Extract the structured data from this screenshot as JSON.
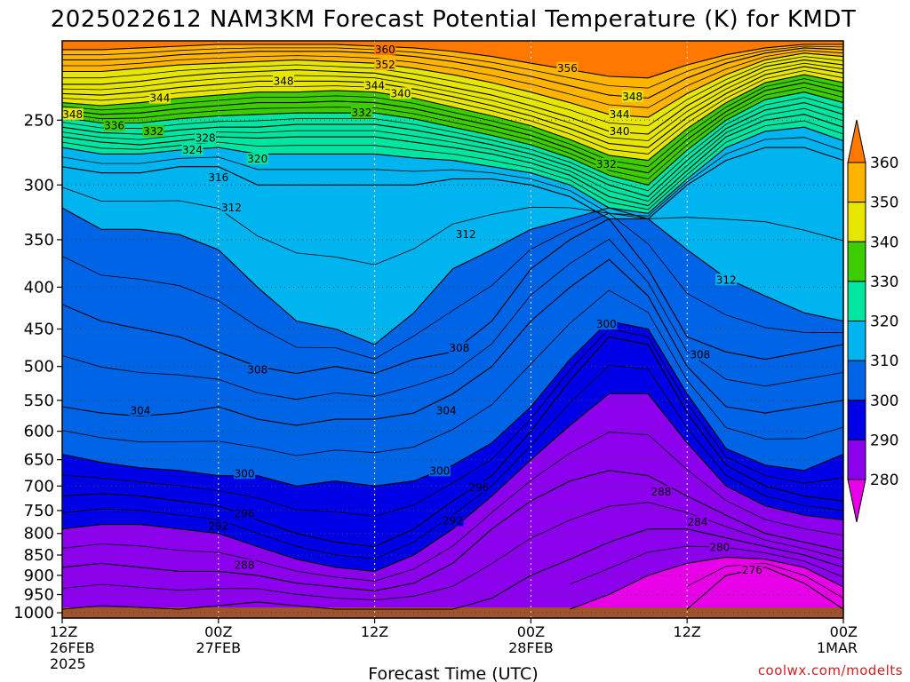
{
  "chart_data": {
    "type": "heatmap",
    "title": "2025022612 NAM3KM Forecast Potential Temperature (K) for KMDT",
    "xlabel": "Forecast Time (UTC)",
    "ylabel": "",
    "credit": "coolwx.com/modelts",
    "y_scale": "log",
    "y_reversed": true,
    "ylim": [
      1015,
      200
    ],
    "xlim": [
      0,
      60
    ],
    "y_ticks": [
      250,
      300,
      350,
      400,
      450,
      500,
      550,
      600,
      650,
      700,
      750,
      800,
      850,
      900,
      950,
      1000
    ],
    "x_ticks": [
      {
        "x": 0,
        "lines": [
          "12Z",
          "26FEB",
          "2025"
        ]
      },
      {
        "x": 12,
        "lines": [
          "00Z",
          "27FEB"
        ]
      },
      {
        "x": 24,
        "lines": [
          "12Z"
        ]
      },
      {
        "x": 36,
        "lines": [
          "00Z",
          "28FEB"
        ]
      },
      {
        "x": 48,
        "lines": [
          "12Z"
        ]
      },
      {
        "x": 60,
        "lines": [
          "00Z",
          "1MAR"
        ]
      }
    ],
    "grid": true,
    "surface_pressure": 985,
    "colorbar": {
      "ticks": [
        280,
        290,
        300,
        310,
        320,
        330,
        340,
        350,
        360
      ],
      "bands": [
        {
          "min": 270,
          "max": 280,
          "color": "#e800e8"
        },
        {
          "min": 280,
          "max": 290,
          "color": "#8c00ee"
        },
        {
          "min": 290,
          "max": 300,
          "color": "#0000e6"
        },
        {
          "min": 300,
          "max": 310,
          "color": "#0064e6"
        },
        {
          "min": 310,
          "max": 320,
          "color": "#00b4f0"
        },
        {
          "min": 320,
          "max": 330,
          "color": "#00e6a0"
        },
        {
          "min": 330,
          "max": 340,
          "color": "#3ccc00"
        },
        {
          "min": 340,
          "max": 350,
          "color": "#e6e600"
        },
        {
          "min": 350,
          "max": 360,
          "color": "#ffb400"
        },
        {
          "min": 360,
          "max": 370,
          "color": "#ff7800"
        }
      ]
    },
    "x": [
      0,
      3,
      6,
      9,
      12,
      15,
      18,
      21,
      24,
      27,
      30,
      33,
      36,
      39,
      42,
      45,
      48,
      51,
      54,
      57,
      60
    ],
    "isentropes": [
      {
        "theta": 276,
        "p": [
          null,
          null,
          null,
          null,
          null,
          null,
          null,
          null,
          null,
          null,
          null,
          null,
          null,
          null,
          null,
          null,
          990,
          900,
          880,
          920,
          990
        ]
      },
      {
        "theta": 280,
        "p": [
          null,
          null,
          null,
          null,
          null,
          null,
          null,
          null,
          null,
          null,
          null,
          null,
          null,
          990,
          950,
          900,
          870,
          855,
          860,
          880,
          930
        ]
      },
      {
        "theta": 284,
        "p": [
          990,
          980,
          985,
          990,
          980,
          970,
          980,
          990,
          990,
          990,
          990,
          960,
          900,
          860,
          820,
          790,
          790,
          810,
          830,
          850,
          880
        ]
      },
      {
        "theta": 288,
        "p": [
          880,
          870,
          880,
          890,
          890,
          900,
          920,
          930,
          940,
          920,
          870,
          790,
          730,
          690,
          670,
          680,
          720,
          760,
          800,
          820,
          840
        ]
      },
      {
        "theta": 292,
        "p": [
          790,
          780,
          780,
          790,
          800,
          830,
          860,
          880,
          890,
          850,
          790,
          720,
          650,
          590,
          540,
          540,
          620,
          700,
          740,
          760,
          770
        ]
      },
      {
        "theta": 296,
        "p": [
          720,
          715,
          720,
          730,
          740,
          770,
          800,
          820,
          830,
          790,
          730,
          680,
          600,
          520,
          460,
          470,
          570,
          660,
          700,
          720,
          730
        ]
      },
      {
        "theta": 300,
        "p": [
          640,
          655,
          665,
          670,
          680,
          680,
          700,
          690,
          700,
          690,
          660,
          620,
          560,
          490,
          440,
          450,
          540,
          630,
          660,
          670,
          640
        ]
      },
      {
        "theta": 304,
        "p": [
          560,
          570,
          575,
          570,
          560,
          580,
          590,
          580,
          580,
          570,
          540,
          500,
          440,
          400,
          370,
          410,
          500,
          560,
          570,
          560,
          550
        ]
      },
      {
        "theta": 308,
        "p": [
          420,
          440,
          450,
          460,
          480,
          500,
          510,
          500,
          510,
          490,
          480,
          440,
          380,
          350,
          330,
          380,
          460,
          480,
          490,
          480,
          470
        ]
      },
      {
        "theta": 312,
        "p": [
          320,
          340,
          340,
          345,
          360,
          400,
          440,
          450,
          470,
          430,
          380,
          360,
          340,
          330,
          320,
          330,
          360,
          390,
          410,
          430,
          440
        ]
      },
      {
        "theta": 316,
        "p": [
          285,
          290,
          290,
          285,
          285,
          300,
          300,
          300,
          300,
          300,
          295,
          295,
          300,
          310,
          330,
          330,
          300,
          280,
          270,
          270,
          280
        ]
      },
      {
        "theta": 320,
        "p": [
          270,
          275,
          275,
          272,
          270,
          275,
          275,
          275,
          275,
          278,
          280,
          285,
          290,
          300,
          320,
          325,
          295,
          270,
          258,
          255,
          265
        ]
      },
      {
        "theta": 324,
        "p": [
          262,
          266,
          268,
          265,
          262,
          263,
          262,
          262,
          262,
          266,
          270,
          275,
          282,
          292,
          310,
          318,
          288,
          262,
          250,
          246,
          255
        ]
      },
      {
        "theta": 328,
        "p": [
          255,
          259,
          260,
          257,
          255,
          255,
          253,
          253,
          253,
          257,
          262,
          268,
          275,
          285,
          300,
          310,
          280,
          256,
          243,
          238,
          246
        ]
      },
      {
        "theta": 332,
        "p": [
          248,
          252,
          252,
          249,
          247,
          246,
          245,
          245,
          245,
          249,
          255,
          261,
          268,
          278,
          292,
          300,
          272,
          250,
          236,
          231,
          238
        ]
      },
      {
        "theta": 336,
        "p": [
          243,
          246,
          245,
          242,
          240,
          238,
          238,
          237,
          238,
          242,
          248,
          254,
          261,
          271,
          284,
          290,
          264,
          244,
          230,
          225,
          231
        ]
      },
      {
        "theta": 340,
        "p": [
          238,
          240,
          238,
          235,
          233,
          231,
          231,
          230,
          231,
          235,
          241,
          247,
          254,
          264,
          276,
          280,
          256,
          238,
          225,
          220,
          225
        ]
      },
      {
        "theta": 344,
        "p": [
          232,
          233,
          231,
          228,
          226,
          224,
          224,
          224,
          225,
          229,
          234,
          240,
          247,
          256,
          267,
          270,
          248,
          232,
          220,
          215,
          219
        ]
      },
      {
        "theta": 348,
        "p": [
          226,
          226,
          224,
          221,
          219,
          218,
          217,
          218,
          219,
          223,
          228,
          233,
          240,
          248,
          258,
          260,
          240,
          226,
          215,
          211,
          214
        ]
      },
      {
        "theta": 352,
        "p": [
          218,
          218,
          216,
          214,
          213,
          212,
          211,
          212,
          213,
          216,
          220,
          225,
          231,
          238,
          246,
          248,
          232,
          220,
          211,
          207,
          209
        ]
      },
      {
        "theta": 356,
        "p": [
          211,
          211,
          210,
          208,
          207,
          206,
          206,
          206,
          207,
          209,
          212,
          216,
          221,
          227,
          233,
          235,
          222,
          213,
          207,
          204,
          205
        ]
      },
      {
        "theta": 360,
        "p": [
          205,
          205,
          204,
          203,
          202,
          202,
          202,
          202,
          203,
          204,
          206,
          209,
          213,
          217,
          221,
          222,
          214,
          208,
          204,
          202,
          202
        ]
      }
    ],
    "contour_labels": [
      {
        "text": "360",
        "x": 24.8,
        "p": 205
      },
      {
        "text": "352",
        "x": 24.8,
        "p": 214
      },
      {
        "text": "356",
        "x": 38.8,
        "p": 216
      },
      {
        "text": "348",
        "x": 17.0,
        "p": 224
      },
      {
        "text": "344",
        "x": 24.0,
        "p": 227
      },
      {
        "text": "340",
        "x": 26.0,
        "p": 232
      },
      {
        "text": "344",
        "x": 7.5,
        "p": 235
      },
      {
        "text": "348",
        "x": 0.8,
        "p": 246
      },
      {
        "text": "332",
        "x": 23.0,
        "p": 245
      },
      {
        "text": "348",
        "x": 43.8,
        "p": 234
      },
      {
        "text": "344",
        "x": 42.8,
        "p": 246
      },
      {
        "text": "336",
        "x": 4.0,
        "p": 254
      },
      {
        "text": "332",
        "x": 7.0,
        "p": 258
      },
      {
        "text": "328",
        "x": 11.0,
        "p": 263
      },
      {
        "text": "340",
        "x": 42.8,
        "p": 258
      },
      {
        "text": "324",
        "x": 10.0,
        "p": 272
      },
      {
        "text": "320",
        "x": 15.0,
        "p": 279
      },
      {
        "text": "332",
        "x": 41.8,
        "p": 283
      },
      {
        "text": "316",
        "x": 12.0,
        "p": 294
      },
      {
        "text": "312",
        "x": 13.0,
        "p": 320
      },
      {
        "text": "312",
        "x": 31.0,
        "p": 345
      },
      {
        "text": "312",
        "x": 51.0,
        "p": 392
      },
      {
        "text": "300",
        "x": 41.8,
        "p": 444
      },
      {
        "text": "308",
        "x": 30.5,
        "p": 475
      },
      {
        "text": "308",
        "x": 49.0,
        "p": 484
      },
      {
        "text": "308",
        "x": 15.0,
        "p": 505
      },
      {
        "text": "304",
        "x": 6.0,
        "p": 566
      },
      {
        "text": "304",
        "x": 29.5,
        "p": 566
      },
      {
        "text": "300",
        "x": 14.0,
        "p": 676
      },
      {
        "text": "300",
        "x": 29.0,
        "p": 671
      },
      {
        "text": "296",
        "x": 32.0,
        "p": 703
      },
      {
        "text": "288",
        "x": 46.0,
        "p": 712
      },
      {
        "text": "296",
        "x": 14.0,
        "p": 757
      },
      {
        "text": "292",
        "x": 30.0,
        "p": 772
      },
      {
        "text": "292",
        "x": 12.0,
        "p": 784
      },
      {
        "text": "284",
        "x": 48.8,
        "p": 775
      },
      {
        "text": "280",
        "x": 50.5,
        "p": 832
      },
      {
        "text": "288",
        "x": 14.0,
        "p": 875
      },
      {
        "text": "276",
        "x": 53.0,
        "p": 887
      }
    ]
  }
}
